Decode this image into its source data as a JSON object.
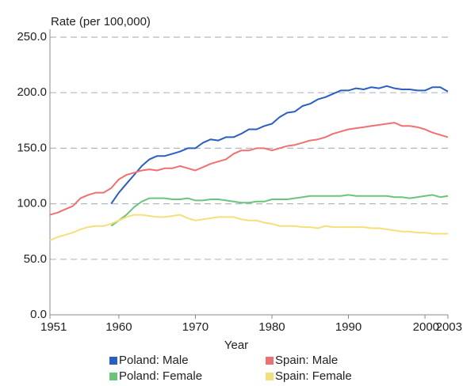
{
  "chart_data": {
    "type": "line",
    "y_label": "Rate (per 100,000)",
    "x_label": "Year",
    "x": [
      1951,
      1952,
      1953,
      1954,
      1955,
      1956,
      1957,
      1958,
      1959,
      1960,
      1961,
      1962,
      1963,
      1964,
      1965,
      1966,
      1967,
      1968,
      1969,
      1970,
      1971,
      1972,
      1973,
      1974,
      1975,
      1976,
      1977,
      1978,
      1979,
      1980,
      1981,
      1982,
      1983,
      1984,
      1985,
      1986,
      1987,
      1988,
      1989,
      1990,
      1991,
      1992,
      1993,
      1994,
      1995,
      1996,
      1997,
      1998,
      1999,
      2000,
      2001,
      2002,
      2003
    ],
    "xlim": [
      1951,
      2003
    ],
    "xticks": [
      1951,
      1960,
      1970,
      1980,
      1990,
      2000,
      2003
    ],
    "ylim": [
      0,
      250
    ],
    "yticks": [
      {
        "value": 0,
        "label": "0.0"
      },
      {
        "value": 50,
        "label": "50.0"
      },
      {
        "value": 100,
        "label": "100.0"
      },
      {
        "value": 150,
        "label": "150.0"
      },
      {
        "value": 200,
        "label": "200.0"
      },
      {
        "value": 250,
        "label": "250.0"
      }
    ],
    "grid": true,
    "series": [
      {
        "name": "Poland: Male",
        "color": "#2a5fbf",
        "values": [
          null,
          null,
          null,
          null,
          null,
          null,
          null,
          null,
          100,
          110,
          118,
          126,
          134,
          140,
          143,
          143,
          145,
          147,
          150,
          150,
          155,
          158,
          157,
          160,
          160,
          163,
          167,
          167,
          170,
          172,
          178,
          182,
          183,
          188,
          190,
          194,
          196,
          199,
          202,
          202,
          204,
          203,
          205,
          204,
          206,
          204,
          203,
          203,
          202,
          202,
          205,
          205,
          201
        ]
      },
      {
        "name": "Spain: Male",
        "color": "#f07070",
        "values": [
          90,
          92,
          95,
          98,
          105,
          108,
          110,
          110,
          114,
          122,
          126,
          128,
          130,
          131,
          130,
          132,
          132,
          134,
          132,
          130,
          133,
          136,
          138,
          140,
          145,
          148,
          148,
          150,
          150,
          148,
          150,
          152,
          153,
          155,
          157,
          158,
          160,
          163,
          165,
          167,
          168,
          169,
          170,
          171,
          172,
          173,
          170,
          170,
          169,
          167,
          164,
          162,
          160
        ]
      },
      {
        "name": "Poland: Female",
        "color": "#6cc47a",
        "values": [
          null,
          null,
          null,
          null,
          null,
          null,
          null,
          null,
          80,
          85,
          90,
          97,
          102,
          105,
          105,
          105,
          104,
          104,
          105,
          103,
          103,
          104,
          104,
          103,
          102,
          101,
          101,
          102,
          102,
          104,
          104,
          104,
          105,
          106,
          107,
          107,
          107,
          107,
          107,
          108,
          107,
          107,
          107,
          107,
          107,
          106,
          106,
          105,
          106,
          107,
          108,
          106,
          107
        ]
      },
      {
        "name": "Spain: Female",
        "color": "#f5df7a",
        "values": [
          67,
          70,
          72,
          74,
          77,
          79,
          80,
          80,
          82,
          85,
          88,
          90,
          90,
          89,
          88,
          88,
          89,
          90,
          87,
          85,
          86,
          87,
          88,
          88,
          88,
          86,
          85,
          85,
          83,
          82,
          80,
          80,
          80,
          79,
          79,
          78,
          80,
          79,
          79,
          79,
          79,
          79,
          78,
          78,
          77,
          76,
          75,
          75,
          74,
          74,
          73,
          73,
          73
        ]
      }
    ]
  }
}
